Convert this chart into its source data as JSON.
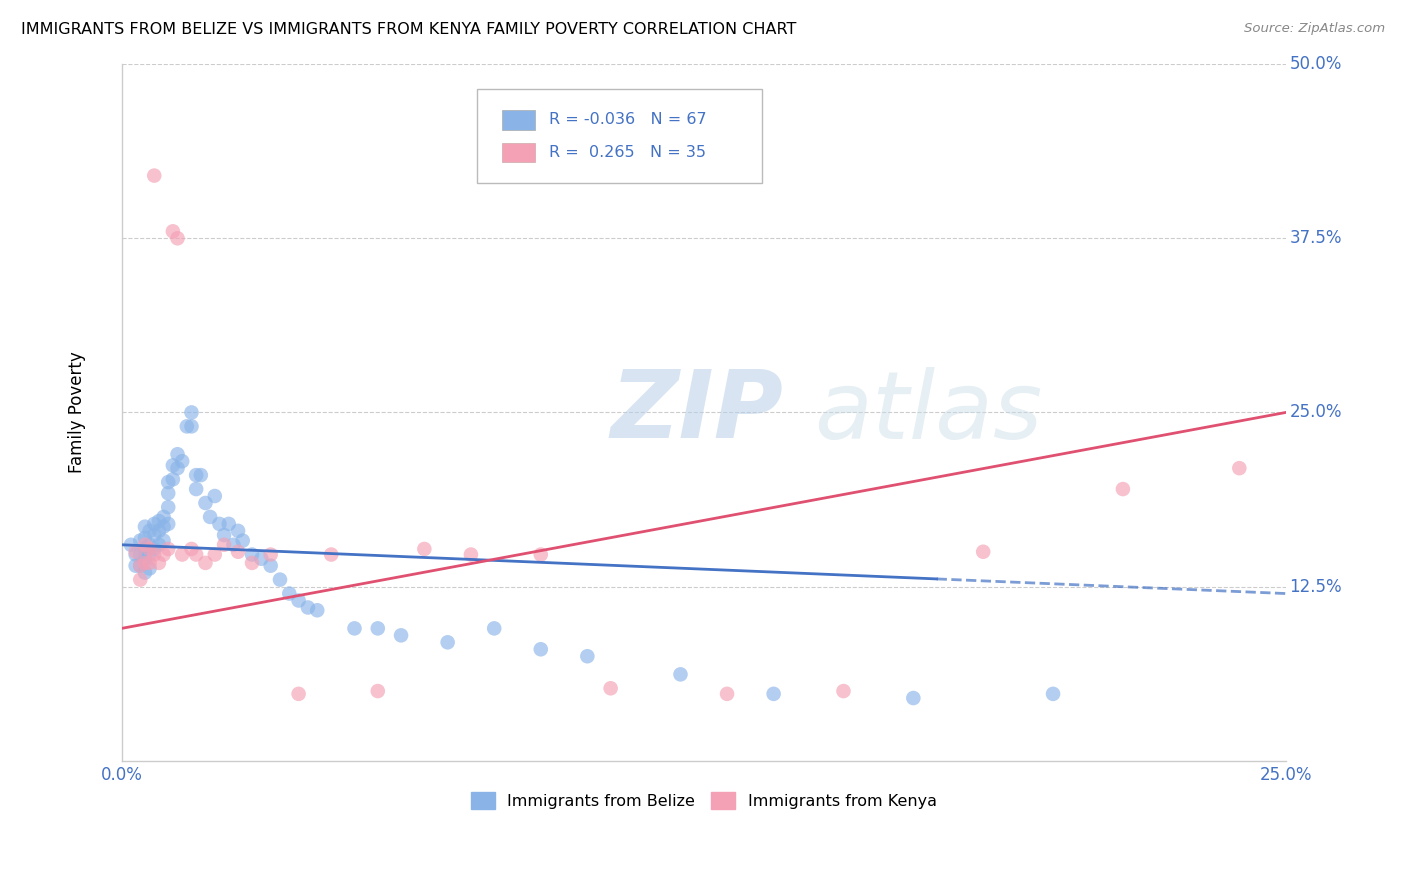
{
  "title": "IMMIGRANTS FROM BELIZE VS IMMIGRANTS FROM KENYA FAMILY POVERTY CORRELATION CHART",
  "source": "Source: ZipAtlas.com",
  "ylabel": "Family Poverty",
  "xlim": [
    0.0,
    0.25
  ],
  "ylim": [
    0.0,
    0.5
  ],
  "watermark": "ZIPatlas",
  "color_belize": "#8AB4E8",
  "color_kenya": "#F4A0B5",
  "color_line_belize": "#4472C4",
  "color_line_kenya": "#E05070",
  "color_axis_labels": "#4472C4",
  "belize_trend_x": [
    0.0,
    0.175,
    0.25
  ],
  "belize_trend_y_solid_end": 0.143,
  "belize_trend_y_start": 0.155,
  "belize_trend_y_end": 0.12,
  "kenya_trend_y_start": 0.095,
  "kenya_trend_y_end": 0.25,
  "belize_x": [
    0.002,
    0.003,
    0.003,
    0.004,
    0.004,
    0.004,
    0.005,
    0.005,
    0.005,
    0.005,
    0.005,
    0.006,
    0.006,
    0.006,
    0.006,
    0.007,
    0.007,
    0.007,
    0.008,
    0.008,
    0.008,
    0.009,
    0.009,
    0.009,
    0.01,
    0.01,
    0.01,
    0.01,
    0.011,
    0.011,
    0.012,
    0.012,
    0.013,
    0.014,
    0.015,
    0.015,
    0.016,
    0.016,
    0.017,
    0.018,
    0.019,
    0.02,
    0.021,
    0.022,
    0.023,
    0.024,
    0.025,
    0.026,
    0.028,
    0.03,
    0.032,
    0.034,
    0.036,
    0.038,
    0.04,
    0.042,
    0.05,
    0.055,
    0.06,
    0.07,
    0.08,
    0.09,
    0.1,
    0.12,
    0.14,
    0.17,
    0.2
  ],
  "belize_y": [
    0.155,
    0.148,
    0.14,
    0.158,
    0.148,
    0.14,
    0.168,
    0.16,
    0.152,
    0.145,
    0.135,
    0.165,
    0.155,
    0.148,
    0.138,
    0.17,
    0.162,
    0.152,
    0.172,
    0.165,
    0.155,
    0.175,
    0.168,
    0.158,
    0.2,
    0.192,
    0.182,
    0.17,
    0.212,
    0.202,
    0.22,
    0.21,
    0.215,
    0.24,
    0.25,
    0.24,
    0.205,
    0.195,
    0.205,
    0.185,
    0.175,
    0.19,
    0.17,
    0.162,
    0.17,
    0.155,
    0.165,
    0.158,
    0.148,
    0.145,
    0.14,
    0.13,
    0.12,
    0.115,
    0.11,
    0.108,
    0.095,
    0.095,
    0.09,
    0.085,
    0.095,
    0.08,
    0.075,
    0.062,
    0.048,
    0.045,
    0.048
  ],
  "kenya_x": [
    0.003,
    0.004,
    0.004,
    0.005,
    0.005,
    0.006,
    0.006,
    0.007,
    0.007,
    0.008,
    0.009,
    0.01,
    0.011,
    0.012,
    0.013,
    0.015,
    0.016,
    0.018,
    0.02,
    0.022,
    0.025,
    0.028,
    0.032,
    0.038,
    0.045,
    0.055,
    0.065,
    0.075,
    0.09,
    0.105,
    0.13,
    0.155,
    0.185,
    0.215,
    0.24
  ],
  "kenya_y": [
    0.15,
    0.14,
    0.13,
    0.155,
    0.142,
    0.152,
    0.142,
    0.42,
    0.148,
    0.142,
    0.148,
    0.152,
    0.38,
    0.375,
    0.148,
    0.152,
    0.148,
    0.142,
    0.148,
    0.155,
    0.15,
    0.142,
    0.148,
    0.048,
    0.148,
    0.05,
    0.152,
    0.148,
    0.148,
    0.052,
    0.048,
    0.05,
    0.15,
    0.195,
    0.21
  ]
}
